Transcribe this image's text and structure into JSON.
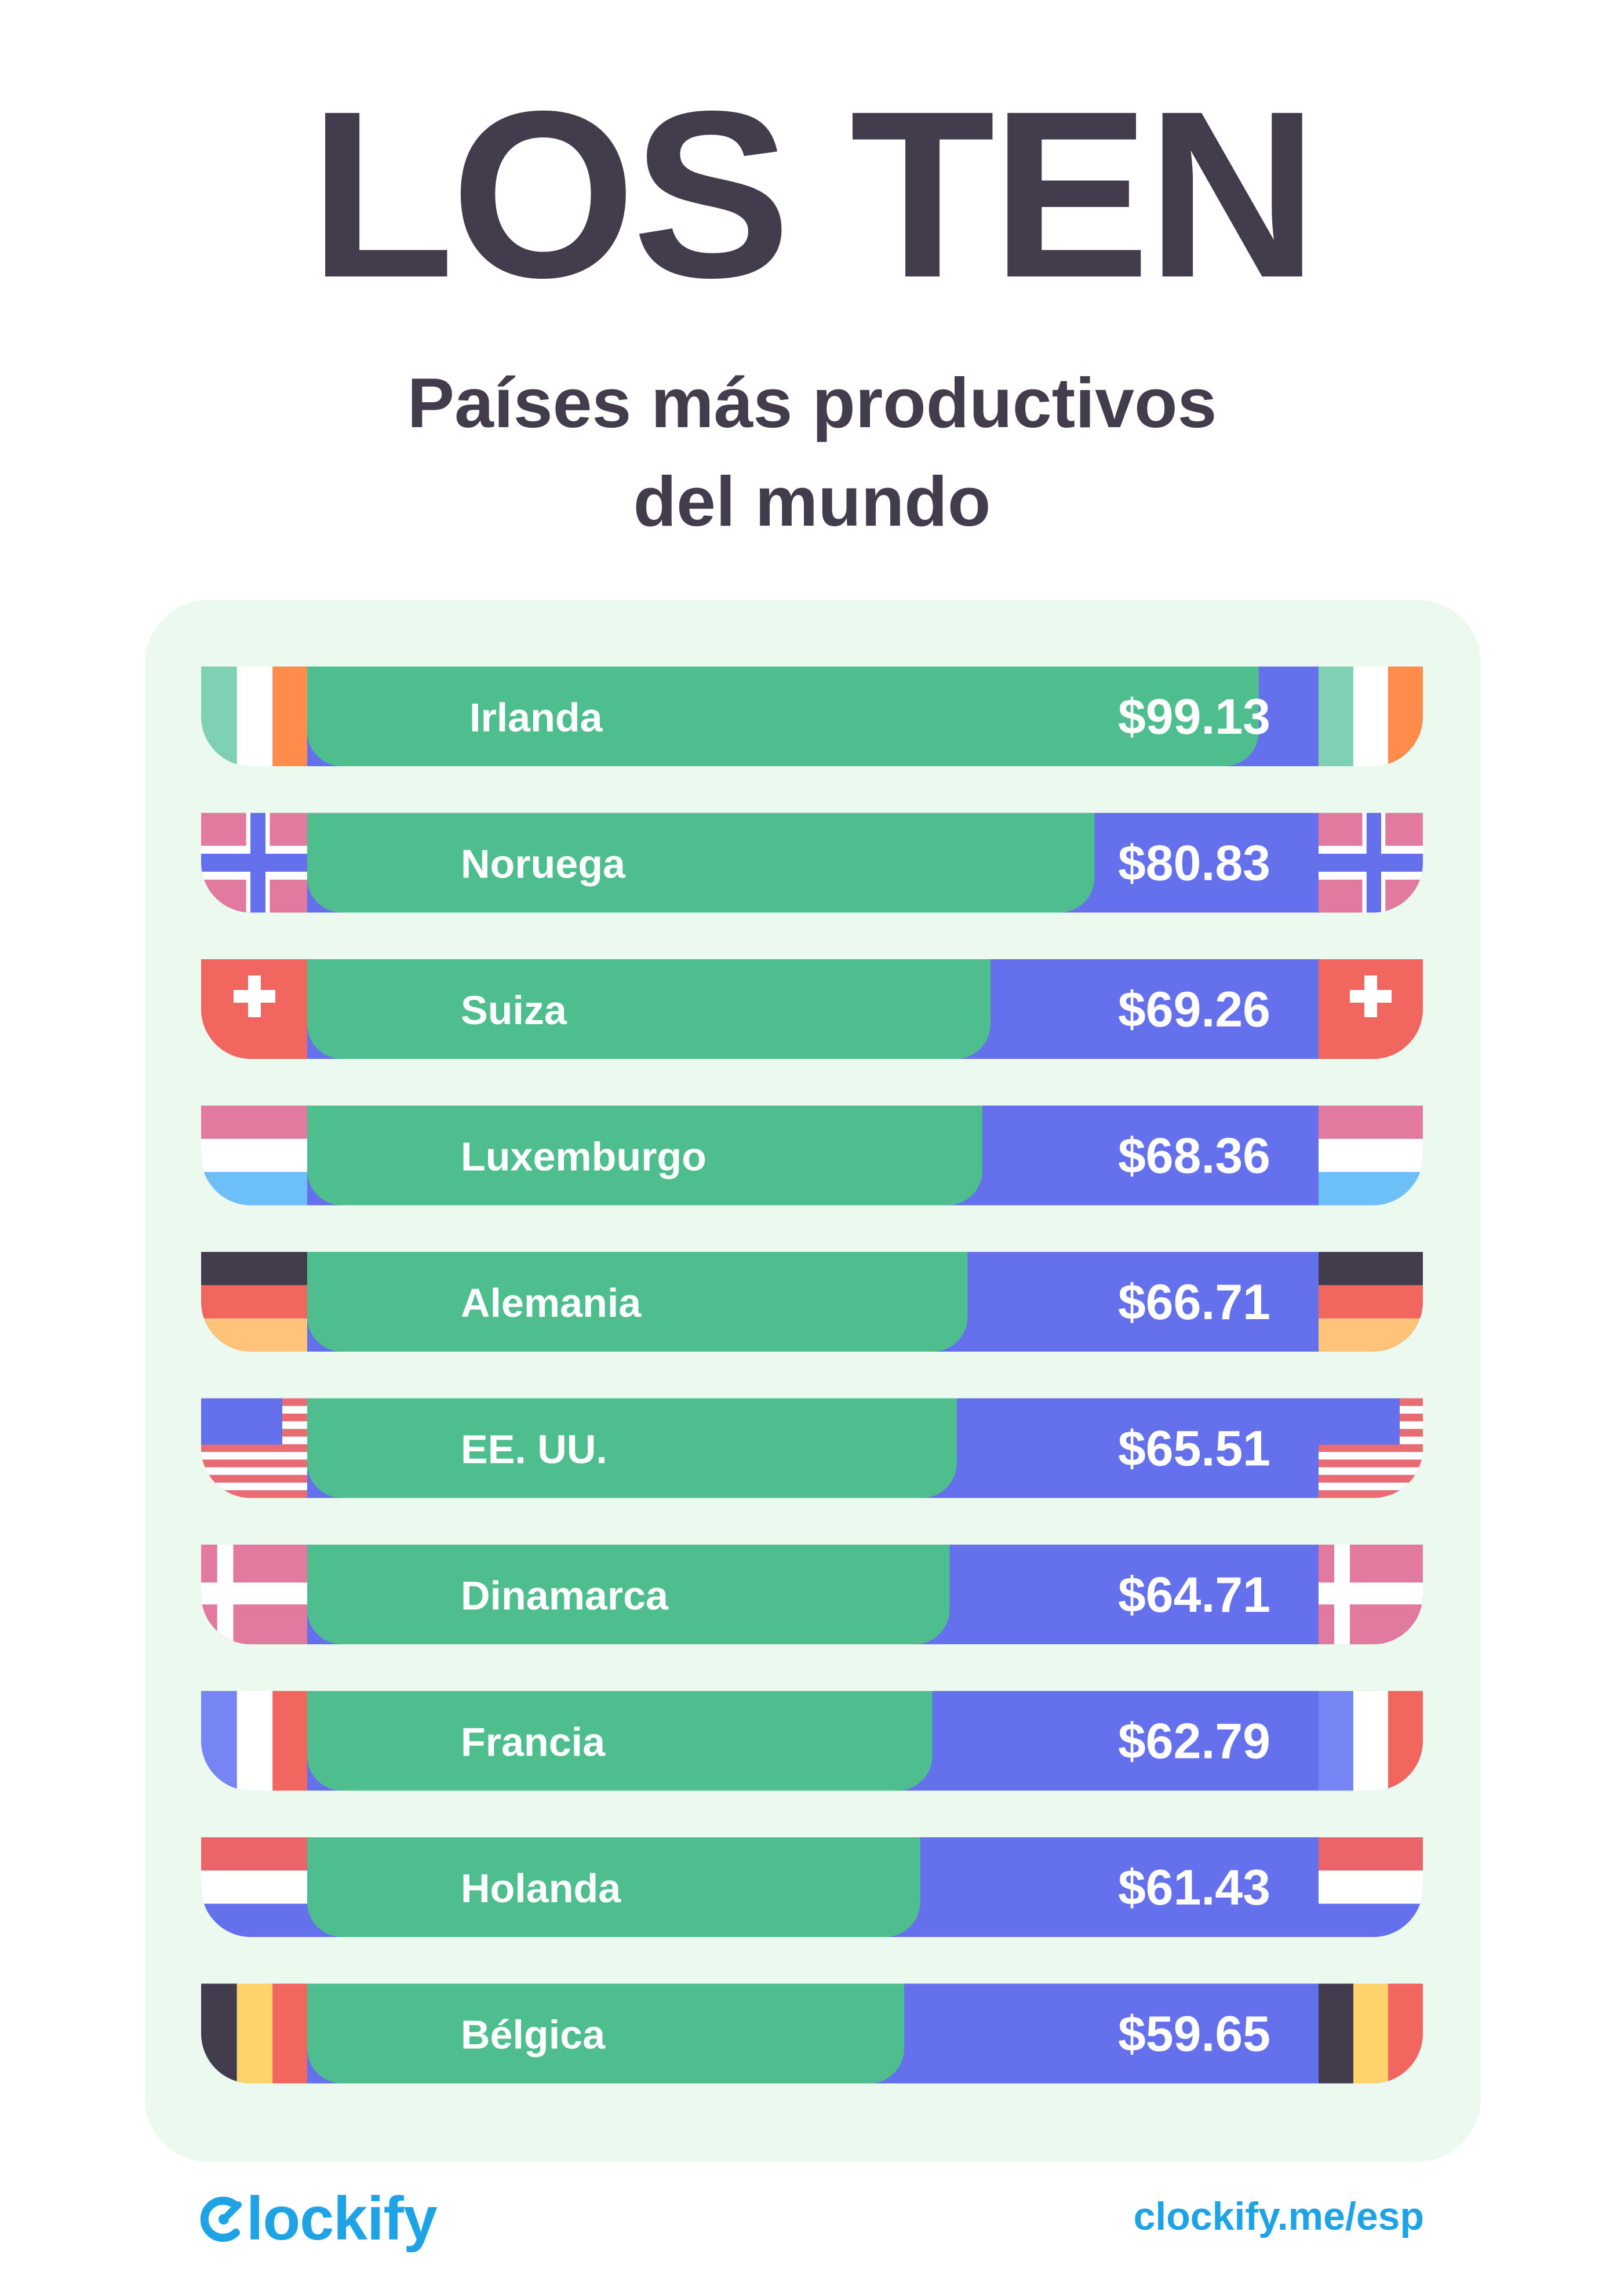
{
  "header": {
    "title": "LOS TEN",
    "subtitle_line1": "Países más productivos",
    "subtitle_line2": "del mundo"
  },
  "footer": {
    "brand": "lockify",
    "url": "clockify.me/esp"
  },
  "colors": {
    "title": "#423c4d",
    "panel": "#ebf9ef",
    "green_bar": "#4fbe8f",
    "blue_bar": "#6470ec",
    "brand": "#1da3e6"
  },
  "chart_data": {
    "type": "bar",
    "orientation": "horizontal",
    "title": "Países más productivos del mundo",
    "categories": [
      "Irlanda",
      "Noruega",
      "Suiza",
      "Luxemburgo",
      "Alemania",
      "EE. UU.",
      "Dinamarca",
      "Francia",
      "Holanda",
      "Bélgica"
    ],
    "values": [
      99.13,
      80.83,
      69.26,
      68.36,
      66.71,
      65.51,
      64.71,
      62.79,
      61.43,
      59.65
    ],
    "value_labels": [
      "$99.13",
      "$80.83",
      "$69.26",
      "$68.36",
      "$66.71",
      "$65.51",
      "$64.71",
      "$62.79",
      "$61.43",
      "$59.65"
    ],
    "flags": [
      "ireland",
      "norway",
      "switzerland",
      "luxembourg",
      "germany",
      "usa",
      "denmark",
      "france",
      "netherlands",
      "belgium"
    ]
  }
}
